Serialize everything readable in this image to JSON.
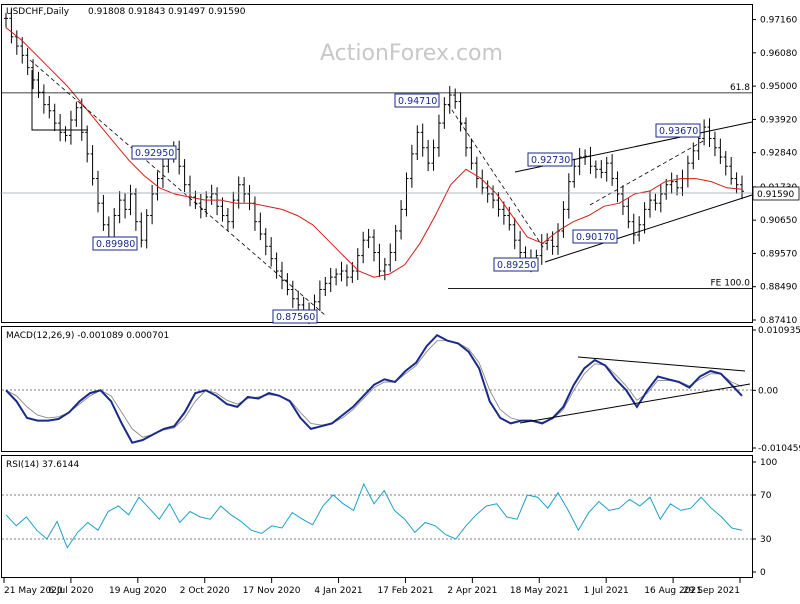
{
  "chart_data": [
    {
      "type": "ohlc",
      "title": "USDCHF,Daily",
      "ohlc_header": "0.91808 0.91843 0.91497 0.91590",
      "watermark": "ActionForex.com",
      "ylim": [
        0.8741,
        0.976
      ],
      "y_ticks": [
        "0.97160",
        "0.96080",
        "0.95000",
        "0.93920",
        "0.92840",
        "0.91730",
        "0.90650",
        "0.89570",
        "0.88490",
        "0.87410"
      ],
      "current_price": "0.91590",
      "x_ticks": [
        "21 May 2020",
        "6 Jul 2020",
        "19 Aug 2020",
        "2 Oct 2020",
        "17 Nov 2020",
        "4 Jan 2021",
        "17 Feb 2021",
        "2 Apr 2021",
        "18 May 2021",
        "1 Jul 2021",
        "16 Aug 2021",
        "29 Sep 2021"
      ],
      "close_series": [
        0.972,
        0.966,
        0.963,
        0.96,
        0.956,
        0.952,
        0.948,
        0.944,
        0.942,
        0.938,
        0.935,
        0.934,
        0.939,
        0.943,
        0.935,
        0.928,
        0.92,
        0.912,
        0.905,
        0.9,
        0.908,
        0.913,
        0.91,
        0.915,
        0.906,
        0.9,
        0.908,
        0.915,
        0.92,
        0.924,
        0.928,
        0.9295,
        0.924,
        0.918,
        0.914,
        0.912,
        0.91,
        0.914,
        0.915,
        0.911,
        0.908,
        0.906,
        0.913,
        0.918,
        0.915,
        0.912,
        0.906,
        0.902,
        0.898,
        0.894,
        0.89,
        0.887,
        0.884,
        0.881,
        0.879,
        0.877,
        0.8756,
        0.88,
        0.884,
        0.886,
        0.888,
        0.889,
        0.89,
        0.888,
        0.89,
        0.895,
        0.9,
        0.901,
        0.896,
        0.89,
        0.892,
        0.896,
        0.903,
        0.91,
        0.92,
        0.928,
        0.935,
        0.93,
        0.925,
        0.93,
        0.938,
        0.944,
        0.9471,
        0.945,
        0.938,
        0.93,
        0.925,
        0.92,
        0.917,
        0.915,
        0.913,
        0.91,
        0.908,
        0.905,
        0.9,
        0.896,
        0.894,
        0.8925,
        0.895,
        0.899,
        0.9,
        0.898,
        0.903,
        0.91,
        0.919,
        0.924,
        0.927,
        0.9273,
        0.924,
        0.923,
        0.922,
        0.925,
        0.92,
        0.915,
        0.911,
        0.906,
        0.9017,
        0.905,
        0.91,
        0.913,
        0.912,
        0.915,
        0.918,
        0.919,
        0.917,
        0.92,
        0.925,
        0.929,
        0.933,
        0.9367,
        0.933,
        0.93,
        0.927,
        0.924,
        0.92,
        0.918,
        0.9159
      ],
      "sma_series": [
        0.969,
        0.965,
        0.96,
        0.955,
        0.95,
        0.944,
        0.938,
        0.932,
        0.926,
        0.921,
        0.917,
        0.915,
        0.914,
        0.913,
        0.913,
        0.912,
        0.912,
        0.911,
        0.91,
        0.908,
        0.905,
        0.9,
        0.895,
        0.89,
        0.888,
        0.889,
        0.892,
        0.899,
        0.908,
        0.918,
        0.923,
        0.92,
        0.915,
        0.908,
        0.901,
        0.899,
        0.903,
        0.906,
        0.908,
        0.911,
        0.912,
        0.915,
        0.916,
        0.919,
        0.92,
        0.92,
        0.919,
        0.917,
        0.9165
      ],
      "levels": [
        {
          "label": "61.8",
          "value": 0.9478
        },
        {
          "label": "FE 100.0",
          "value": 0.8843
        }
      ],
      "annotations": [
        "0.92950",
        "0.89980",
        "0.87560",
        "0.94710",
        "0.92730",
        "0.89250",
        "0.90170",
        "0.93670"
      ]
    },
    {
      "type": "line",
      "title": "MACD(12,26,9) -0.001089 0.000701",
      "ylim": [
        -0.010459,
        0.010935
      ],
      "y_ticks": [
        "0.010935",
        "0.00",
        "-0.010459"
      ],
      "macd_series": [
        0.0,
        -0.002,
        -0.005,
        -0.0055,
        -0.0055,
        -0.0052,
        -0.004,
        -0.002,
        -0.0005,
        0.0,
        -0.002,
        -0.006,
        -0.0095,
        -0.009,
        -0.008,
        -0.007,
        -0.0065,
        -0.004,
        -0.0005,
        0.0,
        -0.001,
        -0.0025,
        -0.003,
        -0.0012,
        -0.0015,
        -0.0005,
        -0.001,
        -0.002,
        -0.005,
        -0.007,
        -0.0065,
        -0.006,
        -0.0045,
        -0.003,
        -0.001,
        0.001,
        0.002,
        0.0015,
        0.0035,
        0.005,
        0.008,
        0.01,
        0.009,
        0.0085,
        0.007,
        0.004,
        -0.002,
        -0.005,
        -0.006,
        -0.0055,
        -0.0055,
        -0.006,
        -0.005,
        -0.003,
        0.001,
        0.004,
        0.0055,
        0.0045,
        0.002,
        0.0,
        -0.003,
        0.0,
        0.0025,
        0.002,
        0.0015,
        0.0005,
        0.0025,
        0.0035,
        0.003,
        0.001,
        -0.001
      ],
      "signal_series": [
        0.0,
        -0.001,
        -0.003,
        -0.0045,
        -0.005,
        -0.0048,
        -0.004,
        -0.0025,
        -0.001,
        0.0,
        -0.001,
        -0.004,
        -0.007,
        -0.0085,
        -0.008,
        -0.0072,
        -0.0068,
        -0.005,
        -0.002,
        0.0,
        -0.0005,
        -0.0018,
        -0.0025,
        -0.0015,
        -0.0012,
        -0.0008,
        -0.001,
        -0.0018,
        -0.004,
        -0.006,
        -0.0063,
        -0.006,
        -0.005,
        -0.0035,
        -0.0015,
        0.0005,
        0.0015,
        0.0015,
        0.003,
        0.0045,
        0.007,
        0.009,
        0.009,
        0.0086,
        0.0075,
        0.005,
        0.0,
        -0.0035,
        -0.005,
        -0.0055,
        -0.0056,
        -0.0058,
        -0.0052,
        -0.0035,
        0.0,
        0.003,
        0.0048,
        0.0046,
        0.0028,
        0.0008,
        -0.0018,
        -0.0005,
        0.0018,
        0.0018,
        0.0016,
        0.0008,
        0.002,
        0.003,
        0.003,
        0.0015,
        0.0007
      ]
    },
    {
      "type": "line",
      "title": "RSI(14) 37.6144",
      "ylim": [
        0,
        100
      ],
      "y_ticks": [
        "100",
        "70",
        "30",
        "0"
      ],
      "levels": [
        70,
        30
      ],
      "rsi_series": [
        52,
        42,
        50,
        38,
        30,
        46,
        22,
        36,
        45,
        38,
        55,
        60,
        52,
        68,
        58,
        48,
        62,
        45,
        55,
        50,
        48,
        60,
        52,
        46,
        38,
        35,
        42,
        40,
        54,
        48,
        43,
        60,
        70,
        62,
        56,
        80,
        62,
        74,
        56,
        48,
        36,
        45,
        42,
        34,
        30,
        42,
        52,
        60,
        62,
        50,
        48,
        70,
        68,
        58,
        72,
        56,
        38,
        54,
        64,
        56,
        58,
        66,
        60,
        68,
        48,
        62,
        56,
        58,
        68,
        58,
        50,
        40,
        38
      ]
    }
  ]
}
